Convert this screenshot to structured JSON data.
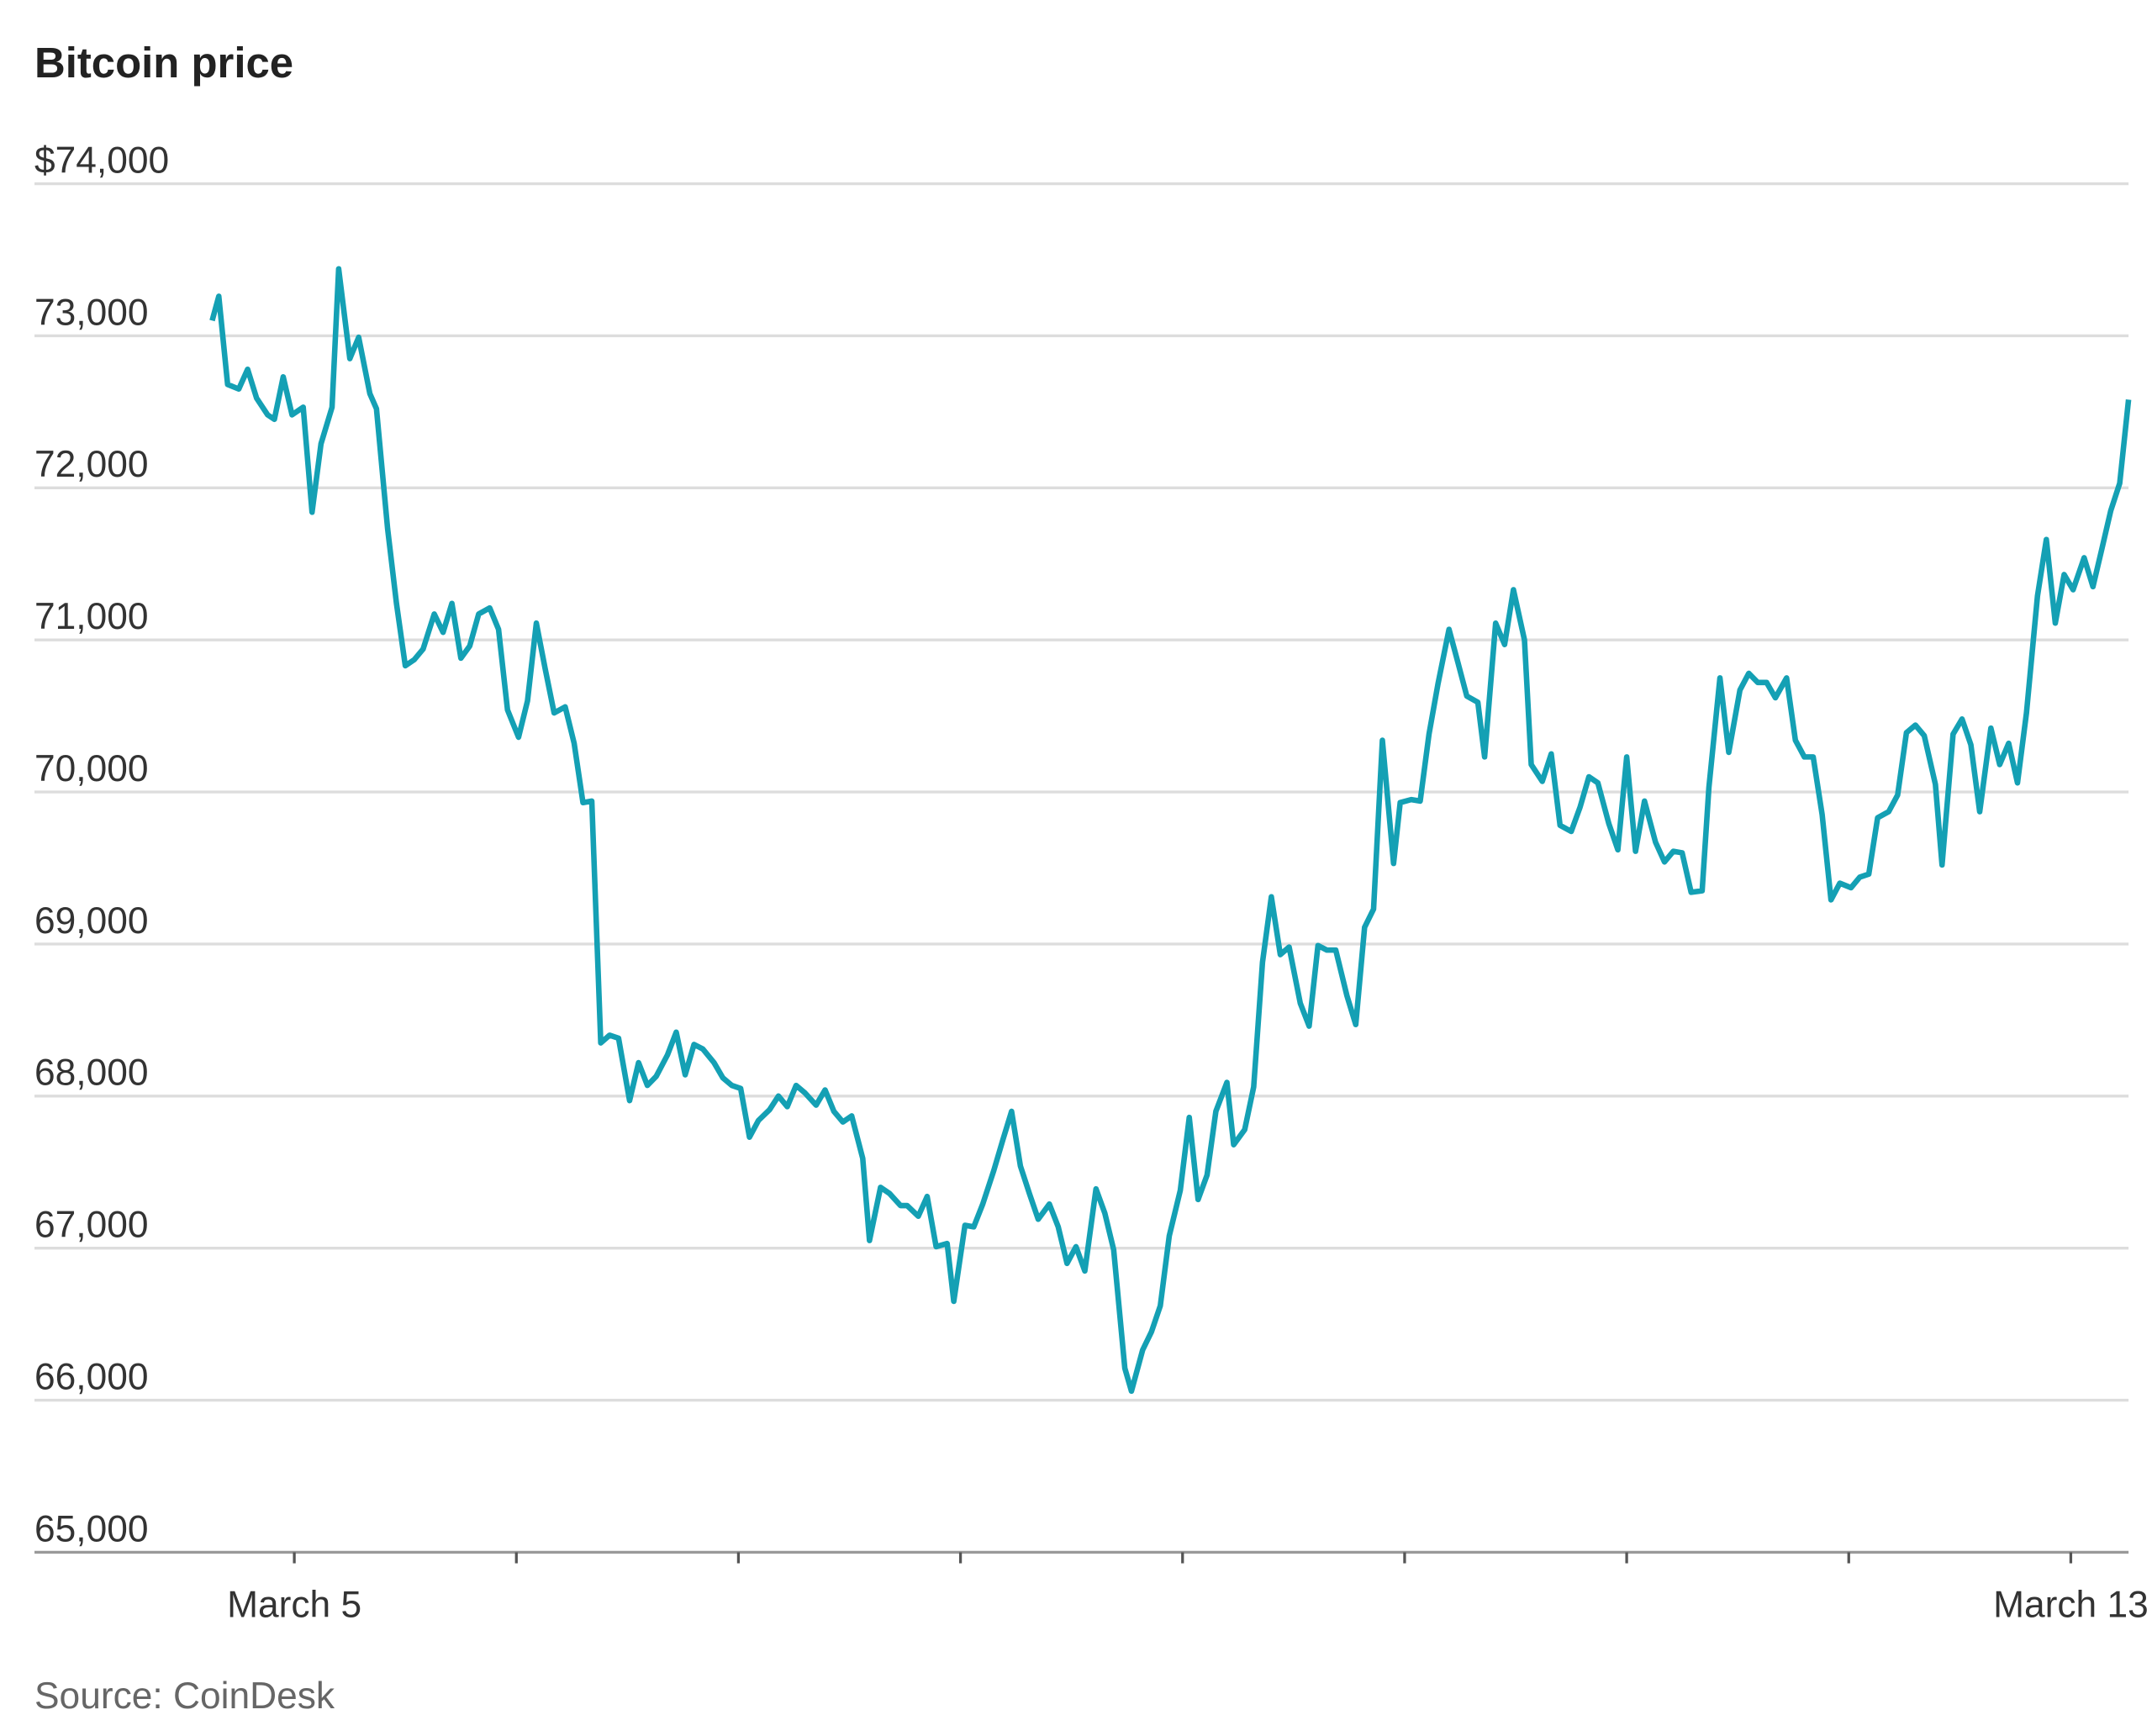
{
  "chart_data": {
    "type": "line",
    "title": "Bitcoin price",
    "source": "Source: CoinDesk",
    "color": "#14a0b4",
    "grid": true,
    "xlim": [
      3.83,
      13.26
    ],
    "ylim": [
      65000,
      74000
    ],
    "xticks": [
      {
        "value": 5,
        "label": "March 5"
      },
      {
        "value": 6,
        "label": null
      },
      {
        "value": 7,
        "label": null
      },
      {
        "value": 8,
        "label": null
      },
      {
        "value": 9,
        "label": null
      },
      {
        "value": 10,
        "label": null
      },
      {
        "value": 11,
        "label": null
      },
      {
        "value": 12,
        "label": null
      },
      {
        "value": 13,
        "label": "March 13"
      }
    ],
    "yticks": [
      {
        "value": 65000,
        "label": "65,000"
      },
      {
        "value": 66000,
        "label": "66,000"
      },
      {
        "value": 67000,
        "label": "67,000"
      },
      {
        "value": 68000,
        "label": "68,000"
      },
      {
        "value": 69000,
        "label": "69,000"
      },
      {
        "value": 70000,
        "label": "70,000"
      },
      {
        "value": 71000,
        "label": "71,000"
      },
      {
        "value": 72000,
        "label": "72,000"
      },
      {
        "value": 73000,
        "label": "73,000"
      },
      {
        "value": 74000,
        "label": "$74,000"
      }
    ],
    "x": [
      4.63,
      4.66,
      4.7,
      4.75,
      4.79,
      4.83,
      4.88,
      4.91,
      4.95,
      4.99,
      5.04,
      5.08,
      5.12,
      5.17,
      5.2,
      5.25,
      5.29,
      5.34,
      5.37,
      5.42,
      5.46,
      5.5,
      5.54,
      5.58,
      5.63,
      5.67,
      5.71,
      5.75,
      5.79,
      5.83,
      5.88,
      5.92,
      5.96,
      6.01,
      6.05,
      6.09,
      6.13,
      6.17,
      6.22,
      6.26,
      6.3,
      6.34,
      6.38,
      6.42,
      6.46,
      6.51,
      6.55,
      6.59,
      6.63,
      6.68,
      6.72,
      6.76,
      6.8,
      6.84,
      6.89,
      6.93,
      6.97,
      7.01,
      7.05,
      7.09,
      7.14,
      7.18,
      7.22,
      7.26,
      7.3,
      7.35,
      7.39,
      7.43,
      7.47,
      7.51,
      7.56,
      7.59,
      7.64,
      7.68,
      7.73,
      7.76,
      7.81,
      7.85,
      7.89,
      7.94,
      7.97,
      8.02,
      8.06,
      8.1,
      8.15,
      8.19,
      8.23,
      8.27,
      8.31,
      8.35,
      8.4,
      8.44,
      8.48,
      8.52,
      8.56,
      8.61,
      8.65,
      8.69,
      8.74,
      8.77,
      8.82,
      8.86,
      8.9,
      8.94,
      8.99,
      9.03,
      9.07,
      9.11,
      9.15,
      9.2,
      9.23,
      9.28,
      9.32,
      9.36,
      9.4,
      9.44,
      9.48,
      9.53,
      9.57,
      9.61,
      9.65,
      9.69,
      9.74,
      9.78,
      9.82,
      9.86,
      9.9,
      9.95,
      9.98,
      10.03,
      10.07,
      10.11,
      10.15,
      10.2,
      10.24,
      10.28,
      10.33,
      10.36,
      10.41,
      10.45,
      10.49,
      10.54,
      10.57,
      10.62,
      10.66,
      10.7,
      10.75,
      10.79,
      10.83,
      10.87,
      10.92,
      10.96,
      11.0,
      11.04,
      11.08,
      11.13,
      11.17,
      11.21,
      11.25,
      11.29,
      11.34,
      11.37,
      11.42,
      11.46,
      11.51,
      11.55,
      11.59,
      11.63,
      11.67,
      11.72,
      11.76,
      11.8,
      11.84,
      11.88,
      11.92,
      11.96,
      12.01,
      12.05,
      12.09,
      12.13,
      12.18,
      12.22,
      12.26,
      12.3,
      12.34,
      12.39,
      12.42,
      12.47,
      12.51,
      12.55,
      12.59,
      12.64,
      12.68,
      12.72,
      12.76,
      12.8,
      12.85,
      12.89,
      12.93,
      12.97,
      13.01,
      13.06,
      13.1,
      13.14,
      13.18,
      13.22,
      13.26
    ],
    "values": [
      73100,
      73260,
      72680,
      72650,
      72780,
      72590,
      72480,
      72450,
      72730,
      72480,
      72530,
      71840,
      72290,
      72530,
      73440,
      72850,
      72990,
      72620,
      72520,
      71730,
      71240,
      70830,
      70870,
      70940,
      71170,
      71050,
      71240,
      70880,
      70960,
      71170,
      71210,
      71070,
      70540,
      70360,
      70600,
      71110,
      70810,
      70520,
      70560,
      70320,
      69930,
      69940,
      68350,
      68400,
      68380,
      67970,
      68220,
      68070,
      68130,
      68270,
      68420,
      68140,
      68340,
      68310,
      68220,
      68120,
      68070,
      68050,
      67730,
      67840,
      67910,
      68000,
      67930,
      68070,
      68020,
      67940,
      68040,
      67900,
      67830,
      67870,
      67590,
      67050,
      67400,
      67360,
      67280,
      67280,
      67210,
      67340,
      67010,
      67030,
      66650,
      67150,
      67140,
      67290,
      67510,
      67710,
      67900,
      67540,
      67360,
      67190,
      67290,
      67140,
      66900,
      67010,
      66850,
      67390,
      67230,
      66990,
      66210,
      66060,
      66330,
      66450,
      66620,
      67080,
      67380,
      67860,
      67320,
      67480,
      67900,
      68090,
      67680,
      67780,
      68060,
      68880,
      69310,
      68930,
      68980,
      68610,
      68460,
      68990,
      68960,
      68960,
      68660,
      68470,
      69110,
      69230,
      70340,
      69530,
      69930,
      69950,
      69940,
      70380,
      70710,
      71070,
      70850,
      70630,
      70590,
      70230,
      71110,
      70970,
      71330,
      71000,
      70180,
      70070,
      70250,
      69780,
      69740,
      69900,
      70100,
      70060,
      69790,
      69620,
      70230,
      69610,
      69940,
      69670,
      69540,
      69610,
      69600,
      69340,
      69350,
      70030,
      70750,
      70260,
      70670,
      70780,
      70720,
      70720,
      70620,
      70750,
      70340,
      70230,
      70230,
      69850,
      69290,
      69400,
      69370,
      69440,
      69460,
      69830,
      69870,
      69980,
      70390,
      70440,
      70370,
      70050,
      69520,
      70380,
      70480,
      70310,
      69870,
      70420,
      70180,
      70320,
      70060,
      70520,
      71290,
      71660,
      71110,
      71430,
      71330,
      71540,
      71350,
      71600,
      71850,
      72030,
      72580
    ]
  }
}
